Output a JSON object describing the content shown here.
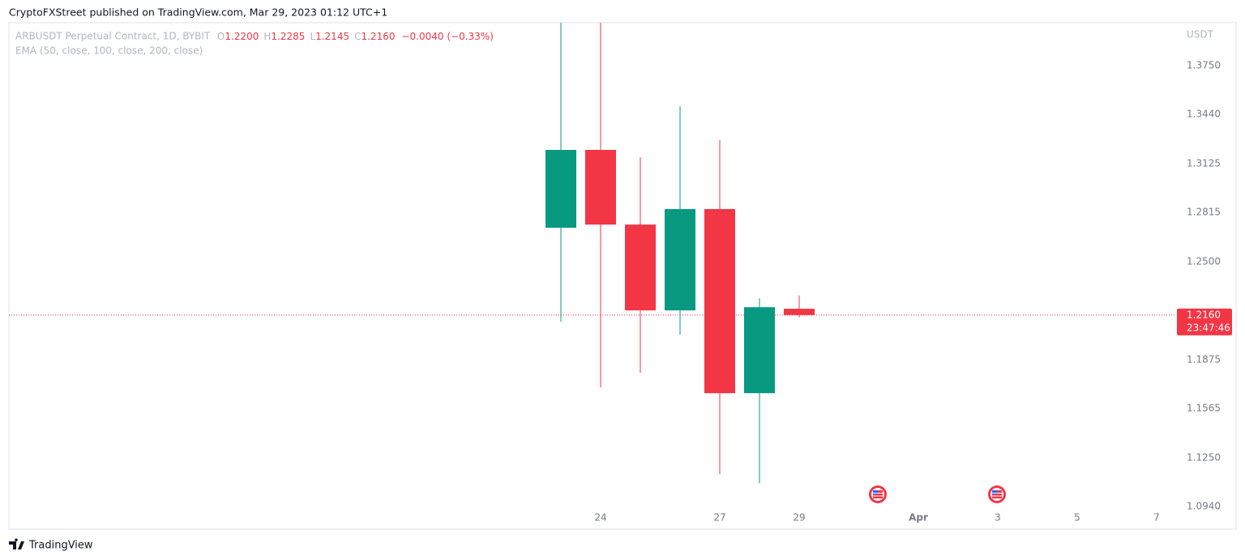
{
  "header": {
    "title": "CryptoFXStreet published on TradingView.com, Mar 29, 2023 01:12 UTC+1"
  },
  "footer": {
    "brand": "TradingView"
  },
  "chart_data": {
    "type": "candlestick",
    "symbol": "ARBUSDT Perpetual Contract, 1D, BYBIT",
    "legend": [
      {
        "key": "O",
        "value": "1.2200"
      },
      {
        "key": "H",
        "value": "1.2285"
      },
      {
        "key": "L",
        "value": "1.2145"
      },
      {
        "key": "C",
        "value": "1.2160"
      }
    ],
    "change": "−0.0040 (−0.33%)",
    "indicator": "EMA (50, close, 100, close, 200, close)",
    "currency": "USDT",
    "x": [
      "2023-03-23",
      "2023-03-24",
      "2023-03-25",
      "2023-03-26",
      "2023-03-27",
      "2023-03-28",
      "2023-03-29"
    ],
    "open": [
      1.2717,
      1.3213,
      1.2737,
      1.219,
      1.2836,
      1.1662,
      1.22
    ],
    "high": [
      1.4024,
      1.4024,
      1.3166,
      1.3492,
      1.3275,
      1.2267,
      1.2285
    ],
    "low": [
      1.2117,
      1.1699,
      1.1792,
      1.2035,
      1.1146,
      1.1089,
      1.2145
    ],
    "close": [
      1.3213,
      1.2737,
      1.219,
      1.2836,
      1.1662,
      1.221,
      1.216
    ],
    "up_color": "#089981",
    "down_color": "#f23645",
    "ylim": [
      1.0924,
      1.4024
    ],
    "yticks": [
      {
        "value": 1.094,
        "label": "1.0940"
      },
      {
        "value": 1.125,
        "label": "1.1250"
      },
      {
        "value": 1.1565,
        "label": "1.1565"
      },
      {
        "value": 1.1875,
        "label": "1.1875"
      },
      {
        "value": 1.25,
        "label": "1.2500"
      },
      {
        "value": 1.2815,
        "label": "1.2815"
      },
      {
        "value": 1.3125,
        "label": "1.3125"
      },
      {
        "value": 1.344,
        "label": "1.3440"
      },
      {
        "value": 1.375,
        "label": "1.3750"
      }
    ],
    "xticks": [
      {
        "value": "2023-03-24",
        "label": "24"
      },
      {
        "value": "2023-03-27",
        "label": "27"
      },
      {
        "value": "2023-03-29",
        "label": "29"
      },
      {
        "value": "2023-04-01",
        "label": "Apr"
      },
      {
        "value": "2023-04-03",
        "label": "3"
      },
      {
        "value": "2023-04-05",
        "label": "5"
      },
      {
        "value": "2023-04-07",
        "label": "7"
      }
    ],
    "last_price": {
      "value": 1.216,
      "label": "1.2160"
    },
    "countdown": "23:47:46"
  }
}
